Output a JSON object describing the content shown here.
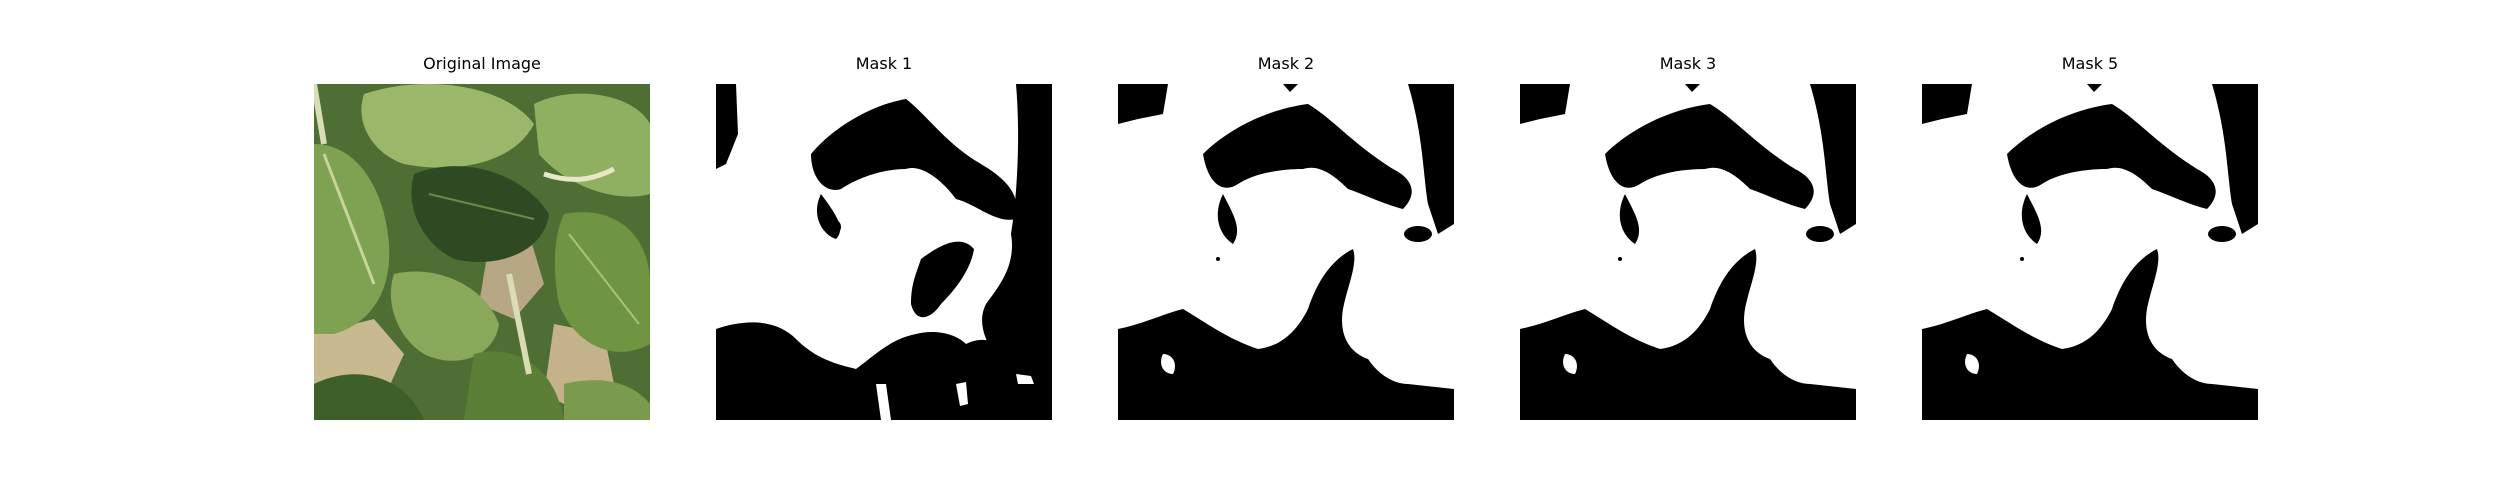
{
  "figure": {
    "panels": [
      {
        "title": "Original Image",
        "kind": "photo"
      },
      {
        "title": "Mask 1",
        "kind": "mask"
      },
      {
        "title": "Mask 2",
        "kind": "mask"
      },
      {
        "title": "Mask 3",
        "kind": "mask"
      },
      {
        "title": "Mask 5",
        "kind": "mask"
      }
    ],
    "mask_colors": {
      "foreground": "#ffffff",
      "background": "#000000"
    },
    "photo_colors": {
      "leaf_light": "#9bb86a",
      "leaf_mid": "#6f9442",
      "leaf_dark": "#3f5f2a",
      "leaf_shadow": "#263d1d",
      "ground": "#c9b98f",
      "stem": "#d9dcb4"
    }
  }
}
